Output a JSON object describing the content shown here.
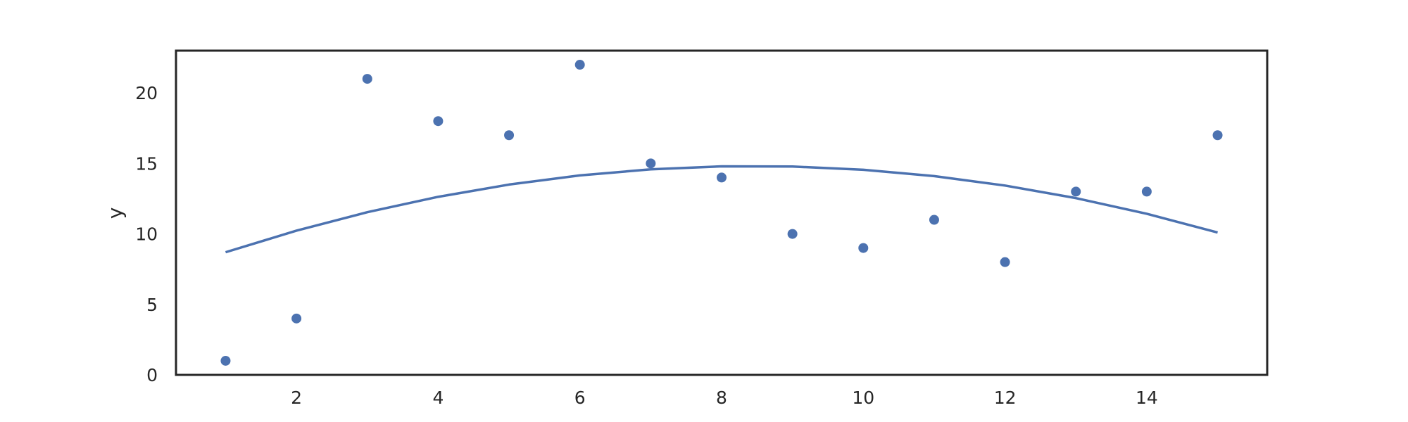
{
  "chart_data": {
    "type": "scatter",
    "title": "",
    "xlabel": "",
    "ylabel": "y",
    "xlim": [
      0.3,
      15.7
    ],
    "ylim": [
      0,
      23
    ],
    "x_ticks": [
      2,
      4,
      6,
      8,
      10,
      12,
      14
    ],
    "y_ticks": [
      0,
      5,
      10,
      15,
      20
    ],
    "grid": false,
    "colors": {
      "points": "#4c72b0",
      "fit_line": "#4c72b0",
      "frame": "#262626",
      "text": "#262626"
    },
    "series": [
      {
        "kind": "scatter",
        "x": [
          1,
          2,
          3,
          4,
          5,
          6,
          7,
          8,
          9,
          10,
          11,
          12,
          13,
          14,
          15
        ],
        "y": [
          1,
          4,
          21,
          18,
          17,
          22,
          15,
          14,
          10,
          9,
          11,
          8,
          13,
          13,
          17
        ]
      },
      {
        "kind": "line",
        "x": [
          1,
          2,
          3,
          4,
          5,
          6,
          7,
          8,
          9,
          10,
          11,
          12,
          13,
          14,
          15
        ],
        "y": [
          8.7,
          10.23,
          11.54,
          12.63,
          13.5,
          14.15,
          14.58,
          14.79,
          14.78,
          14.55,
          14.1,
          13.43,
          12.54,
          11.43,
          10.1
        ]
      }
    ]
  }
}
